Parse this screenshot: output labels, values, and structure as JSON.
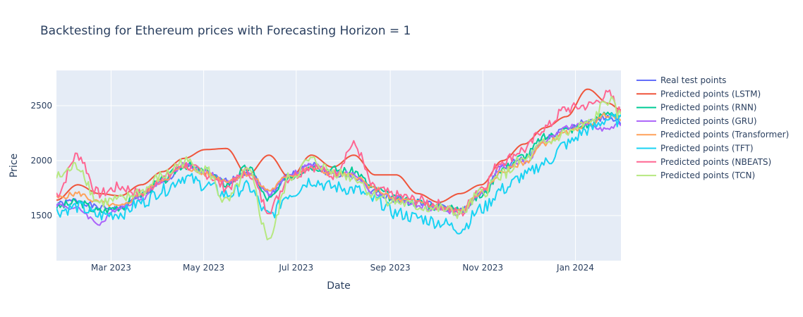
{
  "chart_data": {
    "type": "line",
    "title": "Backtesting for Ethereum prices with Forecasting Horizon = 1",
    "xlabel": "Date",
    "ylabel": "Price",
    "x_range": [
      "2023-01-24",
      "2024-01-31"
    ],
    "ylim": [
      1090,
      2820
    ],
    "x_ticks": [
      {
        "date": "2023-03-01",
        "label": "Mar 2023"
      },
      {
        "date": "2023-05-01",
        "label": "May 2023"
      },
      {
        "date": "2023-07-01",
        "label": "Jul 2023"
      },
      {
        "date": "2023-09-01",
        "label": "Sep 2023"
      },
      {
        "date": "2023-11-01",
        "label": "Nov 2023"
      },
      {
        "date": "2024-01-01",
        "label": "Jan 2024"
      }
    ],
    "y_ticks": [
      1500,
      2000,
      2500
    ],
    "grid": true,
    "legend_position": "right",
    "background": "#e5ecf6",
    "x": [
      "2023-01-24",
      "2023-02-07",
      "2023-02-21",
      "2023-03-07",
      "2023-03-21",
      "2023-04-04",
      "2023-04-18",
      "2023-05-02",
      "2023-05-16",
      "2023-05-30",
      "2023-06-13",
      "2023-06-27",
      "2023-07-11",
      "2023-07-25",
      "2023-08-08",
      "2023-08-22",
      "2023-09-05",
      "2023-09-19",
      "2023-10-03",
      "2023-10-17",
      "2023-10-31",
      "2023-11-14",
      "2023-11-28",
      "2023-12-12",
      "2023-12-26",
      "2024-01-09",
      "2024-01-23",
      "2024-01-31"
    ],
    "series": [
      {
        "name": "Real test points",
        "color": "#636efa",
        "noise": 30,
        "values": [
          1600,
          1640,
          1570,
          1560,
          1690,
          1800,
          1950,
          1880,
          1810,
          1900,
          1700,
          1870,
          1960,
          1880,
          1850,
          1720,
          1640,
          1620,
          1590,
          1540,
          1700,
          1950,
          2020,
          2200,
          2300,
          2350,
          2400,
          2350
        ]
      },
      {
        "name": "Predicted points (LSTM)",
        "color": "#ef553b",
        "noise": 0,
        "values": [
          1640,
          1780,
          1700,
          1680,
          1780,
          1900,
          2020,
          2100,
          2110,
          1870,
          2050,
          1840,
          2050,
          1940,
          2050,
          1870,
          1870,
          1700,
          1620,
          1700,
          1780,
          2000,
          2150,
          2300,
          2400,
          2650,
          2520,
          2460
        ]
      },
      {
        "name": "Predicted points (RNN)",
        "color": "#00cc96",
        "noise": 40,
        "values": [
          1580,
          1620,
          1540,
          1580,
          1700,
          1820,
          1960,
          1900,
          1790,
          1930,
          1650,
          1860,
          1950,
          1920,
          1900,
          1740,
          1650,
          1620,
          1580,
          1560,
          1680,
          1930,
          2040,
          2210,
          2280,
          2320,
          2450,
          2380
        ]
      },
      {
        "name": "Predicted points (GRU)",
        "color": "#ab63fa",
        "noise": 25,
        "values": [
          1600,
          1560,
          1430,
          1580,
          1660,
          1820,
          1960,
          1900,
          1800,
          1880,
          1710,
          1880,
          1960,
          1900,
          1870,
          1700,
          1660,
          1580,
          1560,
          1520,
          1700,
          1940,
          1980,
          2180,
          2300,
          2330,
          2280,
          2330
        ]
      },
      {
        "name": "Predicted points (Transformer)",
        "color": "#ffa15a",
        "noise": 25,
        "values": [
          1660,
          1700,
          1620,
          1580,
          1700,
          1830,
          1940,
          1880,
          1820,
          1880,
          1730,
          1870,
          1930,
          1880,
          1860,
          1740,
          1640,
          1630,
          1570,
          1540,
          1710,
          1900,
          1980,
          2160,
          2250,
          2330,
          2420,
          2360
        ]
      },
      {
        "name": "Predicted points (TFT)",
        "color": "#19d3f3",
        "noise": 60,
        "values": [
          1540,
          1580,
          1500,
          1520,
          1620,
          1730,
          1850,
          1780,
          1690,
          1760,
          1500,
          1700,
          1820,
          1760,
          1740,
          1640,
          1520,
          1480,
          1440,
          1380,
          1560,
          1740,
          1860,
          1980,
          2150,
          2280,
          2380,
          2360
        ]
      },
      {
        "name": "Predicted points (NBEATS)",
        "color": "#ff6692",
        "noise": 50,
        "values": [
          1700,
          2050,
          1700,
          1760,
          1700,
          1840,
          1960,
          1880,
          1760,
          1900,
          1560,
          1850,
          1950,
          1870,
          2140,
          1740,
          1680,
          1640,
          1600,
          1520,
          1760,
          2000,
          2100,
          2300,
          2470,
          2500,
          2600,
          2440
        ]
      },
      {
        "name": "Predicted points (TCN)",
        "color": "#b6e880",
        "noise": 55,
        "values": [
          1850,
          1950,
          1620,
          1640,
          1720,
          1860,
          1990,
          1920,
          1620,
          1900,
          1300,
          1850,
          2000,
          1900,
          1850,
          1680,
          1620,
          1580,
          1560,
          1520,
          1700,
          1880,
          2000,
          2150,
          2250,
          2330,
          2550,
          2400
        ]
      }
    ]
  }
}
